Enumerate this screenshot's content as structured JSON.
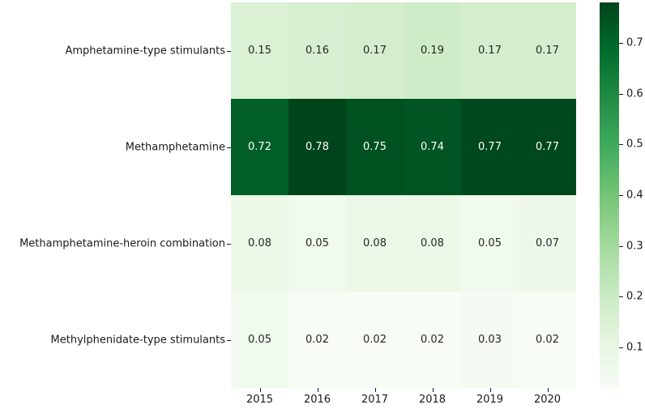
{
  "chart_data": {
    "type": "heatmap",
    "title": "",
    "xlabel": "",
    "ylabel": "",
    "categories_x": [
      "2015",
      "2016",
      "2017",
      "2018",
      "2019",
      "2020"
    ],
    "categories_y": [
      "Amphetamine-type stimulants",
      "Methamphetamine",
      "Methamphetamine-heroin combination",
      "Methylphenidate-type stimulants"
    ],
    "values": [
      [
        0.15,
        0.16,
        0.17,
        0.19,
        0.17,
        0.17
      ],
      [
        0.72,
        0.78,
        0.75,
        0.74,
        0.77,
        0.77
      ],
      [
        0.08,
        0.05,
        0.08,
        0.08,
        0.05,
        0.07
      ],
      [
        0.05,
        0.02,
        0.02,
        0.02,
        0.03,
        0.02
      ]
    ],
    "value_format_decimals": 2,
    "annotations_shown": true,
    "vmin": 0.02,
    "vmax": 0.78,
    "colormap": {
      "name": "Greens",
      "stops": [
        "#f7fcf5",
        "#e5f5e0",
        "#c7e9c0",
        "#a1d99b",
        "#74c476",
        "#41ab5d",
        "#238b45",
        "#006d2c",
        "#00441b"
      ]
    },
    "annotation_text_dark": "#262626",
    "annotation_text_light": "#ffffff",
    "colorbar": {
      "position": "right",
      "ticks": [
        0.1,
        0.2,
        0.3,
        0.4,
        0.5,
        0.6,
        0.7
      ]
    },
    "grid": false,
    "legend_position": "right-colorbar"
  }
}
